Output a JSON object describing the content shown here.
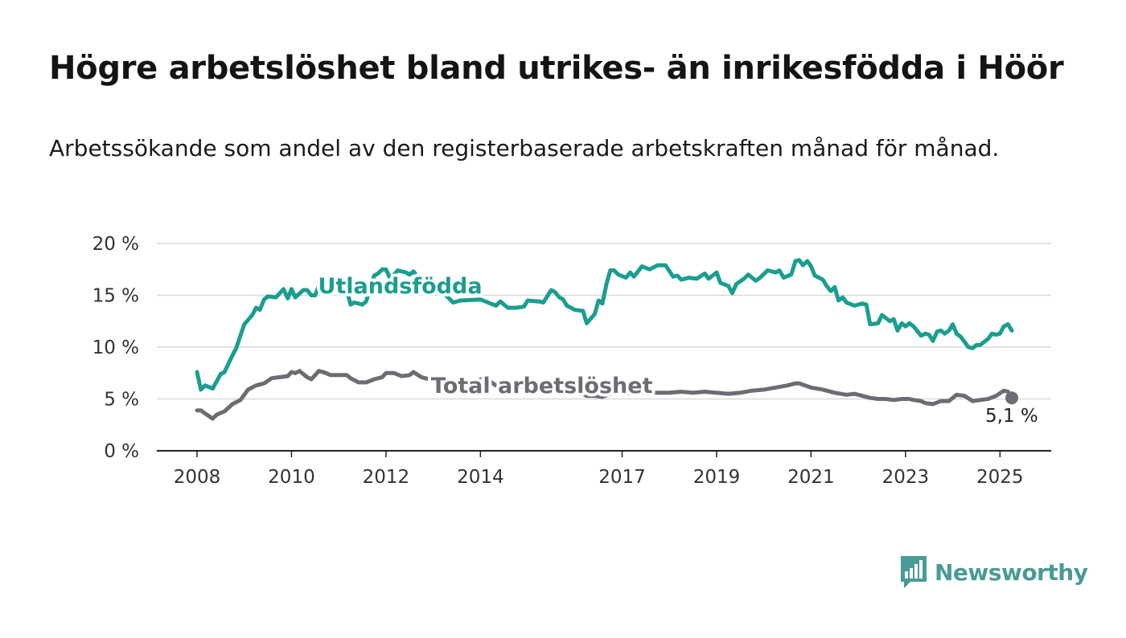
{
  "title": "Högre arbetslöshet bland utrikes- än inrikesfödda i Höör",
  "subtitle": "Arbetssökande som andel av den registerbaserade arbetskraften månad för månad.",
  "logo": {
    "text": "Newsworthy",
    "icon": "newsworthy-bar-chart-icon",
    "color": "#4a9a97"
  },
  "colors": {
    "utlandsfodda": "#1a9e8f",
    "total": "#6e6b73",
    "grid": "#d9d9d9",
    "axis": "#222222"
  },
  "chart_data": {
    "type": "line",
    "xlabel": "",
    "ylabel": "",
    "ylim": [
      0,
      20
    ],
    "xlim": [
      2008,
      2025.25
    ],
    "y_ticks": [
      {
        "value": 0,
        "label": "0 %"
      },
      {
        "value": 5,
        "label": "5 %"
      },
      {
        "value": 10,
        "label": "10 %"
      },
      {
        "value": 15,
        "label": "15 %"
      },
      {
        "value": 20,
        "label": "20 %"
      }
    ],
    "x_ticks": [
      {
        "value": 2008,
        "label": "2008"
      },
      {
        "value": 2010,
        "label": "2010"
      },
      {
        "value": 2012,
        "label": "2012"
      },
      {
        "value": 2014,
        "label": "2014"
      },
      {
        "value": 2017,
        "label": "2017"
      },
      {
        "value": 2019,
        "label": "2019"
      },
      {
        "value": 2021,
        "label": "2021"
      },
      {
        "value": 2023,
        "label": "2023"
      },
      {
        "value": 2025,
        "label": "2025"
      }
    ],
    "grid": true,
    "series": [
      {
        "name": "Utlandsfödda",
        "label_at": [
          2012.3,
          15.2
        ],
        "points": [
          [
            2008.0,
            7.6
          ],
          [
            2008.08,
            5.9
          ],
          [
            2008.17,
            6.3
          ],
          [
            2008.33,
            6.0
          ],
          [
            2008.5,
            7.4
          ],
          [
            2008.58,
            7.6
          ],
          [
            2008.75,
            9.2
          ],
          [
            2008.83,
            9.9
          ],
          [
            2009.0,
            12.2
          ],
          [
            2009.17,
            13.1
          ],
          [
            2009.25,
            13.8
          ],
          [
            2009.33,
            13.6
          ],
          [
            2009.42,
            14.6
          ],
          [
            2009.5,
            14.9
          ],
          [
            2009.67,
            14.8
          ],
          [
            2009.83,
            15.6
          ],
          [
            2009.92,
            14.7
          ],
          [
            2010.0,
            15.6
          ],
          [
            2010.08,
            14.8
          ],
          [
            2010.25,
            15.5
          ],
          [
            2010.33,
            15.5
          ],
          [
            2010.42,
            15.0
          ],
          [
            2010.5,
            15.0
          ],
          [
            2010.58,
            15.9
          ],
          [
            2010.67,
            15.6
          ],
          [
            2010.83,
            15.8
          ],
          [
            2010.92,
            15.5
          ],
          [
            2011.0,
            16.0
          ],
          [
            2011.08,
            15.2
          ],
          [
            2011.17,
            15.5
          ],
          [
            2011.25,
            14.1
          ],
          [
            2011.33,
            14.3
          ],
          [
            2011.42,
            14.2
          ],
          [
            2011.5,
            14.1
          ],
          [
            2011.58,
            14.4
          ],
          [
            2011.75,
            16.9
          ],
          [
            2011.83,
            17.1
          ],
          [
            2011.92,
            17.5
          ],
          [
            2012.0,
            17.5
          ],
          [
            2012.08,
            16.7
          ],
          [
            2012.17,
            17.0
          ],
          [
            2012.25,
            17.4
          ],
          [
            2012.42,
            17.2
          ],
          [
            2012.5,
            17.0
          ],
          [
            2012.58,
            17.3
          ],
          [
            2012.67,
            16.8
          ],
          [
            2013.08,
            15.9
          ],
          [
            2013.42,
            14.3
          ],
          [
            2013.58,
            14.5
          ],
          [
            2014.0,
            14.6
          ],
          [
            2014.33,
            14.0
          ],
          [
            2014.42,
            14.4
          ],
          [
            2014.58,
            13.8
          ],
          [
            2014.75,
            13.8
          ],
          [
            2014.92,
            13.9
          ],
          [
            2015.0,
            14.5
          ],
          [
            2015.25,
            14.4
          ],
          [
            2015.33,
            14.3
          ],
          [
            2015.5,
            15.5
          ],
          [
            2015.58,
            15.3
          ],
          [
            2015.67,
            14.8
          ],
          [
            2015.75,
            14.6
          ],
          [
            2015.83,
            14.0
          ],
          [
            2016.0,
            13.6
          ],
          [
            2016.17,
            13.5
          ],
          [
            2016.25,
            12.3
          ],
          [
            2016.42,
            13.2
          ],
          [
            2016.5,
            14.5
          ],
          [
            2016.58,
            14.2
          ],
          [
            2016.67,
            16.1
          ],
          [
            2016.75,
            17.4
          ],
          [
            2016.83,
            17.4
          ],
          [
            2016.92,
            17.0
          ],
          [
            2017.08,
            16.7
          ],
          [
            2017.17,
            17.2
          ],
          [
            2017.25,
            16.8
          ],
          [
            2017.42,
            17.8
          ],
          [
            2017.58,
            17.5
          ],
          [
            2017.75,
            17.9
          ],
          [
            2017.92,
            17.9
          ],
          [
            2018.08,
            16.8
          ],
          [
            2018.17,
            16.9
          ],
          [
            2018.25,
            16.5
          ],
          [
            2018.42,
            16.7
          ],
          [
            2018.58,
            16.6
          ],
          [
            2018.75,
            17.1
          ],
          [
            2018.83,
            16.6
          ],
          [
            2019.0,
            17.2
          ],
          [
            2019.08,
            16.2
          ],
          [
            2019.25,
            15.9
          ],
          [
            2019.33,
            15.2
          ],
          [
            2019.42,
            16.1
          ],
          [
            2019.58,
            16.6
          ],
          [
            2019.67,
            17.0
          ],
          [
            2019.83,
            16.4
          ],
          [
            2019.92,
            16.7
          ],
          [
            2020.08,
            17.4
          ],
          [
            2020.25,
            17.2
          ],
          [
            2020.33,
            17.4
          ],
          [
            2020.42,
            16.7
          ],
          [
            2020.58,
            17.0
          ],
          [
            2020.67,
            18.3
          ],
          [
            2020.75,
            18.4
          ],
          [
            2020.83,
            17.9
          ],
          [
            2020.92,
            18.3
          ],
          [
            2021.0,
            17.8
          ],
          [
            2021.08,
            16.9
          ],
          [
            2021.25,
            16.5
          ],
          [
            2021.33,
            15.9
          ],
          [
            2021.42,
            15.4
          ],
          [
            2021.5,
            15.8
          ],
          [
            2021.58,
            14.5
          ],
          [
            2021.67,
            14.8
          ],
          [
            2021.75,
            14.3
          ],
          [
            2021.92,
            14.0
          ],
          [
            2022.08,
            14.2
          ],
          [
            2022.17,
            14.1
          ],
          [
            2022.25,
            12.2
          ],
          [
            2022.42,
            12.3
          ],
          [
            2022.5,
            13.1
          ],
          [
            2022.67,
            12.5
          ],
          [
            2022.75,
            12.7
          ],
          [
            2022.83,
            11.6
          ],
          [
            2022.92,
            12.3
          ],
          [
            2023.0,
            12.0
          ],
          [
            2023.08,
            12.3
          ],
          [
            2023.17,
            12.0
          ],
          [
            2023.33,
            11.1
          ],
          [
            2023.42,
            11.3
          ],
          [
            2023.5,
            11.2
          ],
          [
            2023.58,
            10.6
          ],
          [
            2023.67,
            11.5
          ],
          [
            2023.75,
            11.6
          ],
          [
            2023.83,
            11.3
          ],
          [
            2023.92,
            11.6
          ],
          [
            2024.0,
            12.2
          ],
          [
            2024.08,
            11.3
          ],
          [
            2024.17,
            11.0
          ],
          [
            2024.25,
            10.5
          ],
          [
            2024.33,
            10.0
          ],
          [
            2024.42,
            9.9
          ],
          [
            2024.5,
            10.2
          ],
          [
            2024.58,
            10.2
          ],
          [
            2024.75,
            10.8
          ],
          [
            2024.83,
            11.3
          ],
          [
            2024.92,
            11.2
          ],
          [
            2025.0,
            11.3
          ],
          [
            2025.08,
            12.0
          ],
          [
            2025.17,
            12.2
          ],
          [
            2025.25,
            11.6
          ]
        ]
      },
      {
        "name": "Total arbetslöshet",
        "label_at": [
          2015.3,
          5.6
        ],
        "end_value": 5.1,
        "end_label": "5,1 %",
        "points": [
          [
            2008.0,
            3.9
          ],
          [
            2008.08,
            3.9
          ],
          [
            2008.17,
            3.6
          ],
          [
            2008.33,
            3.1
          ],
          [
            2008.42,
            3.5
          ],
          [
            2008.58,
            3.8
          ],
          [
            2008.75,
            4.5
          ],
          [
            2008.92,
            4.9
          ],
          [
            2009.08,
            5.9
          ],
          [
            2009.25,
            6.3
          ],
          [
            2009.42,
            6.5
          ],
          [
            2009.58,
            7.0
          ],
          [
            2009.75,
            7.1
          ],
          [
            2009.92,
            7.2
          ],
          [
            2010.0,
            7.6
          ],
          [
            2010.08,
            7.5
          ],
          [
            2010.17,
            7.7
          ],
          [
            2010.33,
            7.1
          ],
          [
            2010.42,
            6.9
          ],
          [
            2010.58,
            7.7
          ],
          [
            2010.67,
            7.6
          ],
          [
            2010.83,
            7.3
          ],
          [
            2011.0,
            7.3
          ],
          [
            2011.17,
            7.3
          ],
          [
            2011.25,
            7.0
          ],
          [
            2011.42,
            6.6
          ],
          [
            2011.58,
            6.6
          ],
          [
            2011.75,
            6.9
          ],
          [
            2011.92,
            7.1
          ],
          [
            2012.0,
            7.5
          ],
          [
            2012.17,
            7.5
          ],
          [
            2012.33,
            7.2
          ],
          [
            2012.5,
            7.3
          ],
          [
            2012.58,
            7.6
          ],
          [
            2012.75,
            7.1
          ],
          [
            2012.92,
            6.9
          ],
          [
            2013.08,
            7.0
          ],
          [
            2013.25,
            6.9
          ],
          [
            2013.42,
            6.6
          ],
          [
            2013.58,
            6.9
          ],
          [
            2013.75,
            6.6
          ],
          [
            2013.92,
            6.5
          ],
          [
            2014.0,
            6.9
          ],
          [
            2014.17,
            6.8
          ],
          [
            2014.33,
            6.3
          ],
          [
            2014.58,
            6.3
          ],
          [
            2014.75,
            6.0
          ],
          [
            2014.92,
            6.3
          ],
          [
            2015.0,
            6.4
          ],
          [
            2015.17,
            6.1
          ],
          [
            2015.33,
            5.7
          ],
          [
            2015.5,
            5.8
          ],
          [
            2015.58,
            6.1
          ],
          [
            2015.75,
            6.0
          ],
          [
            2015.92,
            6.2
          ],
          [
            2016.08,
            5.7
          ],
          [
            2016.25,
            5.3
          ],
          [
            2016.42,
            5.3
          ],
          [
            2016.58,
            5.2
          ],
          [
            2016.75,
            5.5
          ],
          [
            2016.92,
            5.7
          ],
          [
            2017.08,
            5.6
          ],
          [
            2017.25,
            5.5
          ],
          [
            2017.5,
            5.6
          ],
          [
            2017.75,
            5.6
          ],
          [
            2018.0,
            5.6
          ],
          [
            2018.25,
            5.7
          ],
          [
            2018.5,
            5.6
          ],
          [
            2018.75,
            5.7
          ],
          [
            2019.0,
            5.6
          ],
          [
            2019.25,
            5.5
          ],
          [
            2019.5,
            5.6
          ],
          [
            2019.75,
            5.8
          ],
          [
            2020.0,
            5.9
          ],
          [
            2020.25,
            6.1
          ],
          [
            2020.5,
            6.3
          ],
          [
            2020.67,
            6.5
          ],
          [
            2020.75,
            6.5
          ],
          [
            2021.0,
            6.1
          ],
          [
            2021.25,
            5.9
          ],
          [
            2021.5,
            5.6
          ],
          [
            2021.75,
            5.4
          ],
          [
            2021.92,
            5.5
          ],
          [
            2022.08,
            5.3
          ],
          [
            2022.25,
            5.1
          ],
          [
            2022.42,
            5.0
          ],
          [
            2022.58,
            5.0
          ],
          [
            2022.75,
            4.9
          ],
          [
            2022.92,
            5.0
          ],
          [
            2023.08,
            5.0
          ],
          [
            2023.17,
            4.9
          ],
          [
            2023.33,
            4.8
          ],
          [
            2023.42,
            4.6
          ],
          [
            2023.58,
            4.5
          ],
          [
            2023.75,
            4.8
          ],
          [
            2023.92,
            4.8
          ],
          [
            2024.08,
            5.4
          ],
          [
            2024.25,
            5.3
          ],
          [
            2024.42,
            4.8
          ],
          [
            2024.58,
            4.9
          ],
          [
            2024.75,
            5.0
          ],
          [
            2024.92,
            5.3
          ],
          [
            2025.08,
            5.8
          ],
          [
            2025.17,
            5.7
          ],
          [
            2025.25,
            5.1
          ]
        ]
      }
    ]
  }
}
